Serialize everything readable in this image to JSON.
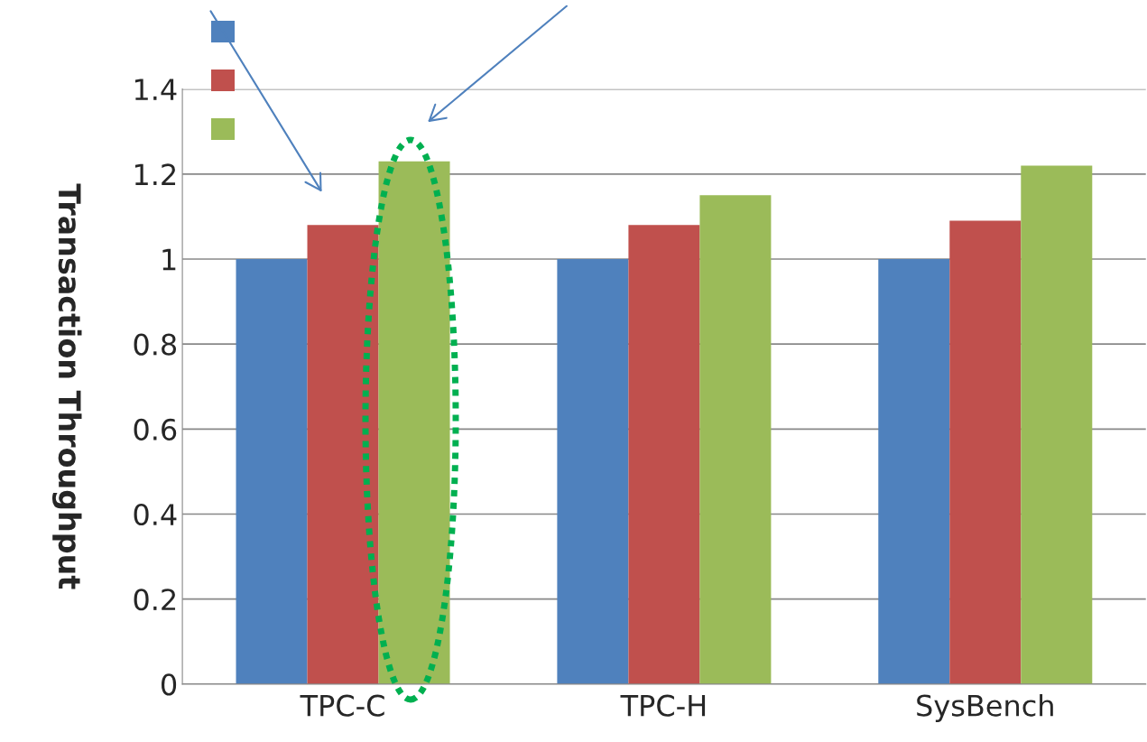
{
  "chart_data": {
    "type": "bar",
    "ylabel": "Transaction Throughput",
    "categories": [
      "TPC-C",
      "TPC-H",
      "SysBench"
    ],
    "series": [
      {
        "color": "#4f81bd",
        "values": [
          1,
          1,
          1
        ]
      },
      {
        "color": "#c0504d",
        "values": [
          1.08,
          1.08,
          1.09
        ]
      },
      {
        "color": "#9bbb59",
        "values": [
          1.23,
          1.15,
          1.22
        ]
      }
    ],
    "ylim": [
      0,
      1.4
    ],
    "yticks": [
      0,
      0.2,
      0.4,
      0.6,
      0.8,
      1,
      1.2,
      1.4
    ],
    "grid": "y"
  }
}
